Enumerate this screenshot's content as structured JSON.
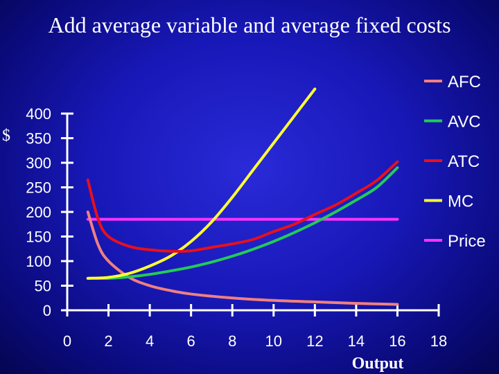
{
  "chart_data": {
    "type": "line",
    "title": "Add average variable and average fixed costs",
    "xlabel": "Output",
    "ylabel": "$",
    "xlim": [
      0,
      18
    ],
    "ylim": [
      0,
      400
    ],
    "x_ticks": [
      0,
      2,
      4,
      6,
      8,
      10,
      12,
      14,
      16,
      18
    ],
    "y_ticks": [
      0,
      50,
      100,
      150,
      200,
      250,
      300,
      350,
      400
    ],
    "legend_position": "right",
    "series": [
      {
        "name": "AFC",
        "color": "#f08080",
        "x": [
          1,
          1.5,
          2,
          3,
          4,
          5,
          6,
          8,
          10,
          12,
          14,
          16
        ],
        "y": [
          200,
          133,
          100,
          67,
          50,
          40,
          33,
          25,
          20,
          17,
          14,
          12
        ]
      },
      {
        "name": "AVC",
        "color": "#22cc55",
        "x": [
          1,
          2,
          3,
          4,
          5,
          6,
          7,
          8,
          9,
          10,
          11,
          12,
          13,
          14,
          15,
          16
        ],
        "y": [
          65,
          65,
          68,
          73,
          80,
          88,
          98,
          110,
          124,
          140,
          158,
          178,
          200,
          224,
          250,
          290
        ]
      },
      {
        "name": "ATC",
        "color": "#e8101a",
        "x": [
          1,
          1.5,
          2,
          3,
          4,
          5,
          6,
          7,
          8,
          9,
          10,
          11,
          12,
          13,
          14,
          15,
          16
        ],
        "y": [
          265,
          185,
          150,
          130,
          123,
          120,
          121,
          128,
          135,
          144,
          160,
          175,
          195,
          214,
          238,
          264,
          302
        ]
      },
      {
        "name": "MC",
        "color": "#ffff33",
        "x": [
          1,
          2,
          3,
          4,
          5,
          6,
          7,
          8,
          9,
          10,
          11,
          12
        ],
        "y": [
          65,
          67,
          75,
          90,
          110,
          140,
          180,
          230,
          285,
          340,
          395,
          450
        ]
      },
      {
        "name": "Price",
        "color": "#ff33ff",
        "x": [
          1,
          16
        ],
        "y": [
          185,
          185
        ]
      }
    ]
  }
}
